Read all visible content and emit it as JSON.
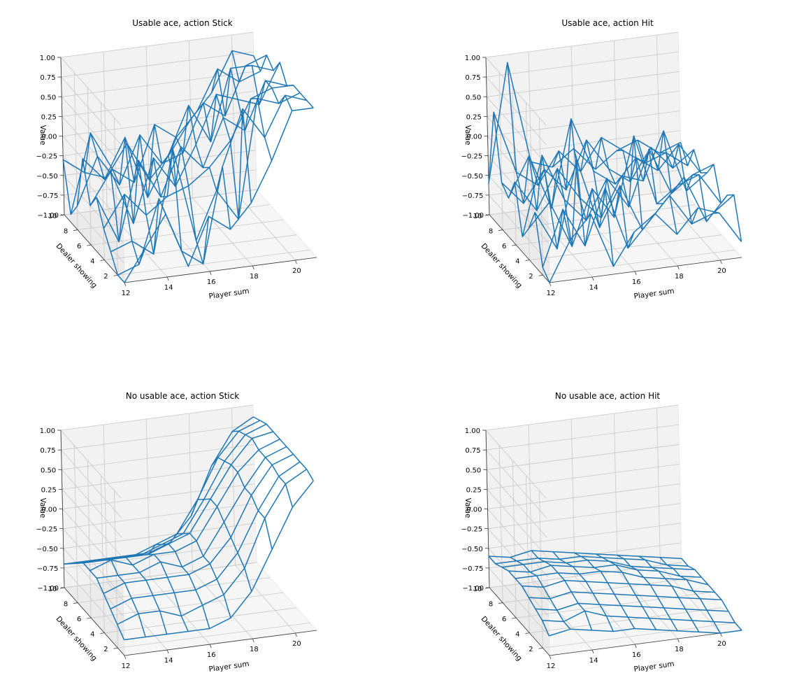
{
  "chart_data": [
    {
      "type": "wireframe3d",
      "title": "Usable ace, action Stick",
      "xlabel": "Player sum",
      "ylabel": "Dealer showing",
      "zlabel": "Value",
      "xlim": [
        12,
        21
      ],
      "ylim": [
        1,
        10
      ],
      "zlim": [
        -1,
        1
      ],
      "x_ticks": [
        12,
        14,
        16,
        18,
        20
      ],
      "y_ticks": [
        2,
        4,
        6,
        8,
        10
      ],
      "z_ticks": [
        "1.00",
        "0.75",
        "0.50",
        "0.25",
        "0.00",
        "−0.25",
        "−0.50",
        "−0.75",
        "−1.00"
      ],
      "x": [
        12,
        13,
        14,
        15,
        16,
        17,
        18,
        19,
        20,
        21
      ],
      "y": [
        1,
        2,
        3,
        4,
        5,
        6,
        7,
        8,
        9,
        10
      ],
      "z": [
        [
          -1.0,
          -0.6,
          -0.2,
          -0.9,
          -0.3,
          -0.5,
          -0.2,
          0.3,
          0.9,
          0.9
        ],
        [
          -1.0,
          -0.9,
          -0.1,
          -0.8,
          -1.0,
          0.2,
          0.9,
          0.5,
          1.0,
          0.9
        ],
        [
          -0.8,
          -0.7,
          -0.9,
          0.4,
          -0.8,
          -0.2,
          -0.6,
          0.9,
          0.8,
          0.9
        ],
        [
          -0.6,
          -0.2,
          -0.5,
          -0.3,
          -0.2,
          0.0,
          0.3,
          0.8,
          0.9,
          0.9
        ],
        [
          -0.3,
          -0.9,
          0.1,
          -0.4,
          0.2,
          -0.1,
          0.5,
          0.3,
          0.9,
          0.8
        ],
        [
          -0.5,
          -0.1,
          -0.8,
          0.0,
          -0.4,
          0.1,
          0.7,
          0.6,
          0.5,
          1.0
        ],
        [
          0.0,
          -0.3,
          0.2,
          -0.6,
          -0.1,
          0.5,
          0.0,
          0.9,
          0.9,
          0.8
        ],
        [
          -0.7,
          -0.1,
          -0.5,
          0.1,
          -0.3,
          -0.2,
          0.4,
          0.2,
          0.8,
          0.9
        ],
        [
          -0.9,
          0.1,
          -0.4,
          -0.6,
          0.1,
          -0.1,
          0.2,
          0.7,
          0.5,
          0.6
        ],
        [
          -0.3,
          -0.5,
          -0.6,
          -0.2,
          -0.7,
          -0.4,
          0.0,
          0.3,
          0.8,
          0.7
        ]
      ]
    },
    {
      "type": "wireframe3d",
      "title": "Usable ace, action Hit",
      "xlabel": "Player sum",
      "ylabel": "Dealer showing",
      "zlabel": "Value",
      "xlim": [
        12,
        21
      ],
      "ylim": [
        1,
        10
      ],
      "zlim": [
        -1,
        1
      ],
      "x_ticks": [
        12,
        14,
        16,
        18,
        20
      ],
      "y_ticks": [
        2,
        4,
        6,
        8,
        10
      ],
      "z_ticks": [
        "1.00",
        "0.75",
        "0.50",
        "0.25",
        "0.00",
        "−0.25",
        "−0.50",
        "−0.75",
        "−1.00"
      ],
      "x": [
        12,
        13,
        14,
        15,
        16,
        17,
        18,
        19,
        20,
        21
      ],
      "y": [
        1,
        2,
        3,
        4,
        5,
        6,
        7,
        8,
        9,
        10
      ],
      "z": [
        [
          -1.0,
          -0.5,
          -0.2,
          -0.9,
          -0.5,
          -0.3,
          -0.6,
          -0.3,
          -0.4,
          -0.8
        ],
        [
          -0.9,
          -0.2,
          -0.7,
          0.0,
          -0.8,
          -0.5,
          -0.2,
          -0.6,
          -0.5,
          -0.3
        ],
        [
          -0.3,
          -0.8,
          0.3,
          -0.6,
          -0.1,
          -0.7,
          -0.4,
          -0.1,
          -0.7,
          -0.4
        ],
        [
          -0.6,
          -0.3,
          -0.9,
          -0.2,
          -0.6,
          0.4,
          -0.5,
          -0.3,
          -0.2,
          -0.6
        ],
        [
          -0.8,
          0.2,
          -0.4,
          -0.7,
          -0.2,
          -0.6,
          0.1,
          -0.5,
          -0.3,
          -0.2
        ],
        [
          -0.2,
          -0.6,
          -0.1,
          -0.5,
          -0.8,
          -0.3,
          -0.4,
          0.2,
          -0.6,
          -0.4
        ],
        [
          -0.5,
          0.0,
          -0.7,
          0.4,
          -0.3,
          -0.5,
          -0.2,
          -0.4,
          -0.1,
          -0.5
        ],
        [
          -0.4,
          -0.7,
          -0.3,
          -0.6,
          0.0,
          -0.4,
          -0.6,
          -0.2,
          -0.5,
          -0.3
        ],
        [
          0.4,
          -0.4,
          -0.6,
          -0.2,
          -0.5,
          -0.1,
          -0.3,
          -0.5,
          -0.4,
          -0.6
        ],
        [
          -0.6,
          0.9,
          -0.4,
          -0.5,
          -0.3,
          -0.6,
          -0.4,
          -0.3,
          -0.5,
          -0.4
        ]
      ]
    },
    {
      "type": "wireframe3d",
      "title": "No usable ace, action Stick",
      "xlabel": "Player sum",
      "ylabel": "Dealer showing",
      "zlabel": "Value",
      "xlim": [
        12,
        21
      ],
      "ylim": [
        1,
        10
      ],
      "zlim": [
        -1,
        1
      ],
      "x_ticks": [
        12,
        14,
        16,
        18,
        20
      ],
      "y_ticks": [
        2,
        4,
        6,
        8,
        10
      ],
      "z_ticks": [
        "1.00",
        "0.75",
        "0.50",
        "0.25",
        "0.00",
        "−0.25",
        "−0.50",
        "−0.75",
        "−1.00"
      ],
      "x": [
        12,
        13,
        14,
        15,
        16,
        17,
        18,
        19,
        20,
        21
      ],
      "y": [
        1,
        2,
        3,
        4,
        5,
        6,
        7,
        8,
        9,
        10
      ],
      "z": [
        [
          -0.8,
          -0.8,
          -0.8,
          -0.8,
          -0.8,
          -0.7,
          -0.4,
          0.1,
          0.6,
          0.9
        ],
        [
          -0.7,
          -0.6,
          -0.6,
          -0.7,
          -0.6,
          -0.5,
          -0.2,
          0.4,
          0.8,
          0.95
        ],
        [
          -0.6,
          -0.5,
          -0.5,
          -0.5,
          -0.5,
          -0.4,
          -0.1,
          0.4,
          0.8,
          0.95
        ],
        [
          -0.5,
          -0.4,
          -0.4,
          -0.4,
          -0.4,
          -0.3,
          0.0,
          0.5,
          0.85,
          0.95
        ],
        [
          -0.4,
          -0.4,
          -0.4,
          -0.3,
          -0.4,
          -0.3,
          0.1,
          0.5,
          0.85,
          0.95
        ],
        [
          -0.4,
          -0.3,
          -0.4,
          -0.3,
          -0.3,
          -0.2,
          0.2,
          0.6,
          0.85,
          0.95
        ],
        [
          -0.4,
          -0.4,
          -0.4,
          -0.4,
          -0.3,
          -0.2,
          0.2,
          0.6,
          0.9,
          0.95
        ],
        [
          -0.5,
          -0.5,
          -0.5,
          -0.5,
          -0.4,
          -0.3,
          0.1,
          0.55,
          0.85,
          0.95
        ],
        [
          -0.6,
          -0.6,
          -0.6,
          -0.6,
          -0.5,
          -0.4,
          0.0,
          0.5,
          0.8,
          0.9
        ],
        [
          -0.7,
          -0.7,
          -0.7,
          -0.7,
          -0.7,
          -0.6,
          -0.3,
          0.3,
          0.7,
          0.85
        ]
      ]
    },
    {
      "type": "wireframe3d",
      "title": "No usable ace, action Hit",
      "xlabel": "Player sum",
      "ylabel": "Dealer showing",
      "zlabel": "Value",
      "xlim": [
        12,
        21
      ],
      "ylim": [
        1,
        10
      ],
      "zlim": [
        -1,
        1
      ],
      "x_ticks": [
        12,
        14,
        16,
        18,
        20
      ],
      "y_ticks": [
        2,
        4,
        6,
        8,
        10
      ],
      "z_ticks": [
        "1.00",
        "0.75",
        "0.50",
        "0.25",
        "0.00",
        "−0.25",
        "−0.50",
        "−0.75",
        "−1.00"
      ],
      "x": [
        12,
        13,
        14,
        15,
        16,
        17,
        18,
        19,
        20,
        21
      ],
      "y": [
        1,
        2,
        3,
        4,
        5,
        6,
        7,
        8,
        9,
        10
      ],
      "z": [
        [
          -0.75,
          -0.7,
          -0.75,
          -0.8,
          -0.8,
          -0.85,
          -0.9,
          -0.95,
          -1.0,
          -1.0
        ],
        [
          -0.65,
          -0.7,
          -0.6,
          -0.7,
          -0.75,
          -0.8,
          -0.85,
          -0.9,
          -0.95,
          -1.0
        ],
        [
          -0.6,
          -0.65,
          -0.6,
          -0.65,
          -0.7,
          -0.75,
          -0.8,
          -0.85,
          -0.9,
          -0.95
        ],
        [
          -0.55,
          -0.6,
          -0.55,
          -0.6,
          -0.65,
          -0.7,
          -0.75,
          -0.8,
          -0.85,
          -0.9
        ],
        [
          -0.5,
          -0.55,
          -0.5,
          -0.55,
          -0.6,
          -0.65,
          -0.7,
          -0.75,
          -0.85,
          -0.9
        ],
        [
          -0.5,
          -0.5,
          -0.5,
          -0.55,
          -0.55,
          -0.6,
          -0.7,
          -0.75,
          -0.8,
          -0.9
        ],
        [
          -0.5,
          -0.55,
          -0.5,
          -0.55,
          -0.6,
          -0.6,
          -0.7,
          -0.75,
          -0.85,
          -0.9
        ],
        [
          -0.55,
          -0.55,
          -0.55,
          -0.6,
          -0.6,
          -0.65,
          -0.75,
          -0.8,
          -0.85,
          -0.9
        ],
        [
          -0.6,
          -0.6,
          -0.6,
          -0.65,
          -0.65,
          -0.7,
          -0.75,
          -0.8,
          -0.9,
          -0.95
        ],
        [
          -0.6,
          -0.65,
          -0.6,
          -0.65,
          -0.7,
          -0.75,
          -0.8,
          -0.85,
          -0.9,
          -0.95
        ]
      ]
    }
  ]
}
